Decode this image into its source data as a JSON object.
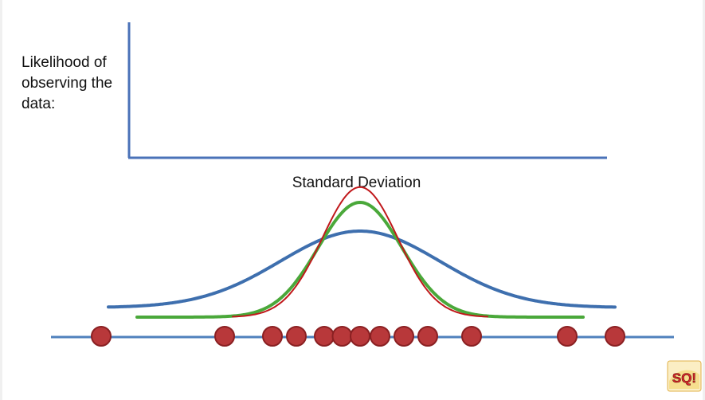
{
  "y_axis_label": "Likelihood of observing the data:",
  "x_axis_label": "Standard Deviation",
  "logo_text": "SQ!",
  "colors": {
    "axis": "#4a72b8",
    "number_line": "#4f81bd",
    "curve_wide": "#3e6fae",
    "curve_medium": "#4aa83a",
    "curve_narrow": "#c0181b",
    "dot_fill": "#b8383a",
    "dot_stroke": "#8a2022"
  },
  "curves": [
    {
      "name": "wide",
      "center": 0,
      "sigma": 2.0,
      "peak": 0.55
    },
    {
      "name": "medium",
      "center": 0,
      "sigma": 1.05,
      "peak": 0.7
    },
    {
      "name": "narrow",
      "center": 0,
      "sigma": 0.95,
      "peak": 0.78
    }
  ],
  "data_points": [
    -6.5,
    -3.4,
    -2.2,
    -1.6,
    -0.9,
    -0.45,
    0.0,
    0.5,
    1.1,
    1.7,
    2.8,
    5.2,
    6.4
  ]
}
